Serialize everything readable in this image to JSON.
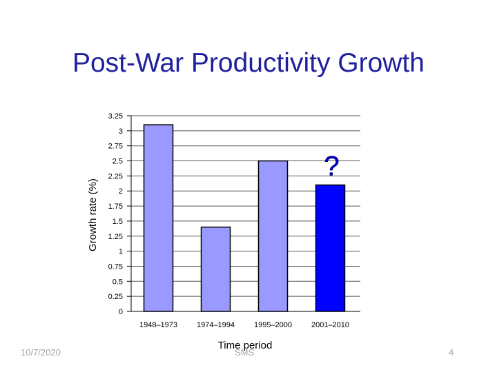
{
  "slide": {
    "title": "Post-War Productivity Growth",
    "footer_date": "10/7/2020",
    "footer_center": "SMS",
    "page_number": "4"
  },
  "chart_data": {
    "type": "bar",
    "title": "",
    "xlabel": "Time period",
    "ylabel": "Growth rate (%)",
    "categories": [
      "1948–1973",
      "1974–1994",
      "1995–2000",
      "2001–2010"
    ],
    "values": [
      3.1,
      1.4,
      2.5,
      2.1
    ],
    "ylim": [
      0,
      3.25
    ],
    "yticks": [
      "0",
      "0.25",
      "0.5",
      "0.75",
      "1",
      "1.25",
      "1.5",
      "1.75",
      "2",
      "2.25",
      "2.5",
      "2.75",
      "3",
      "3.25"
    ],
    "grid": true,
    "bar_colors": [
      "#9999ff",
      "#9999ff",
      "#9999ff",
      "#0000ff"
    ],
    "annotation": {
      "text": "?",
      "category": "2001–2010"
    }
  }
}
